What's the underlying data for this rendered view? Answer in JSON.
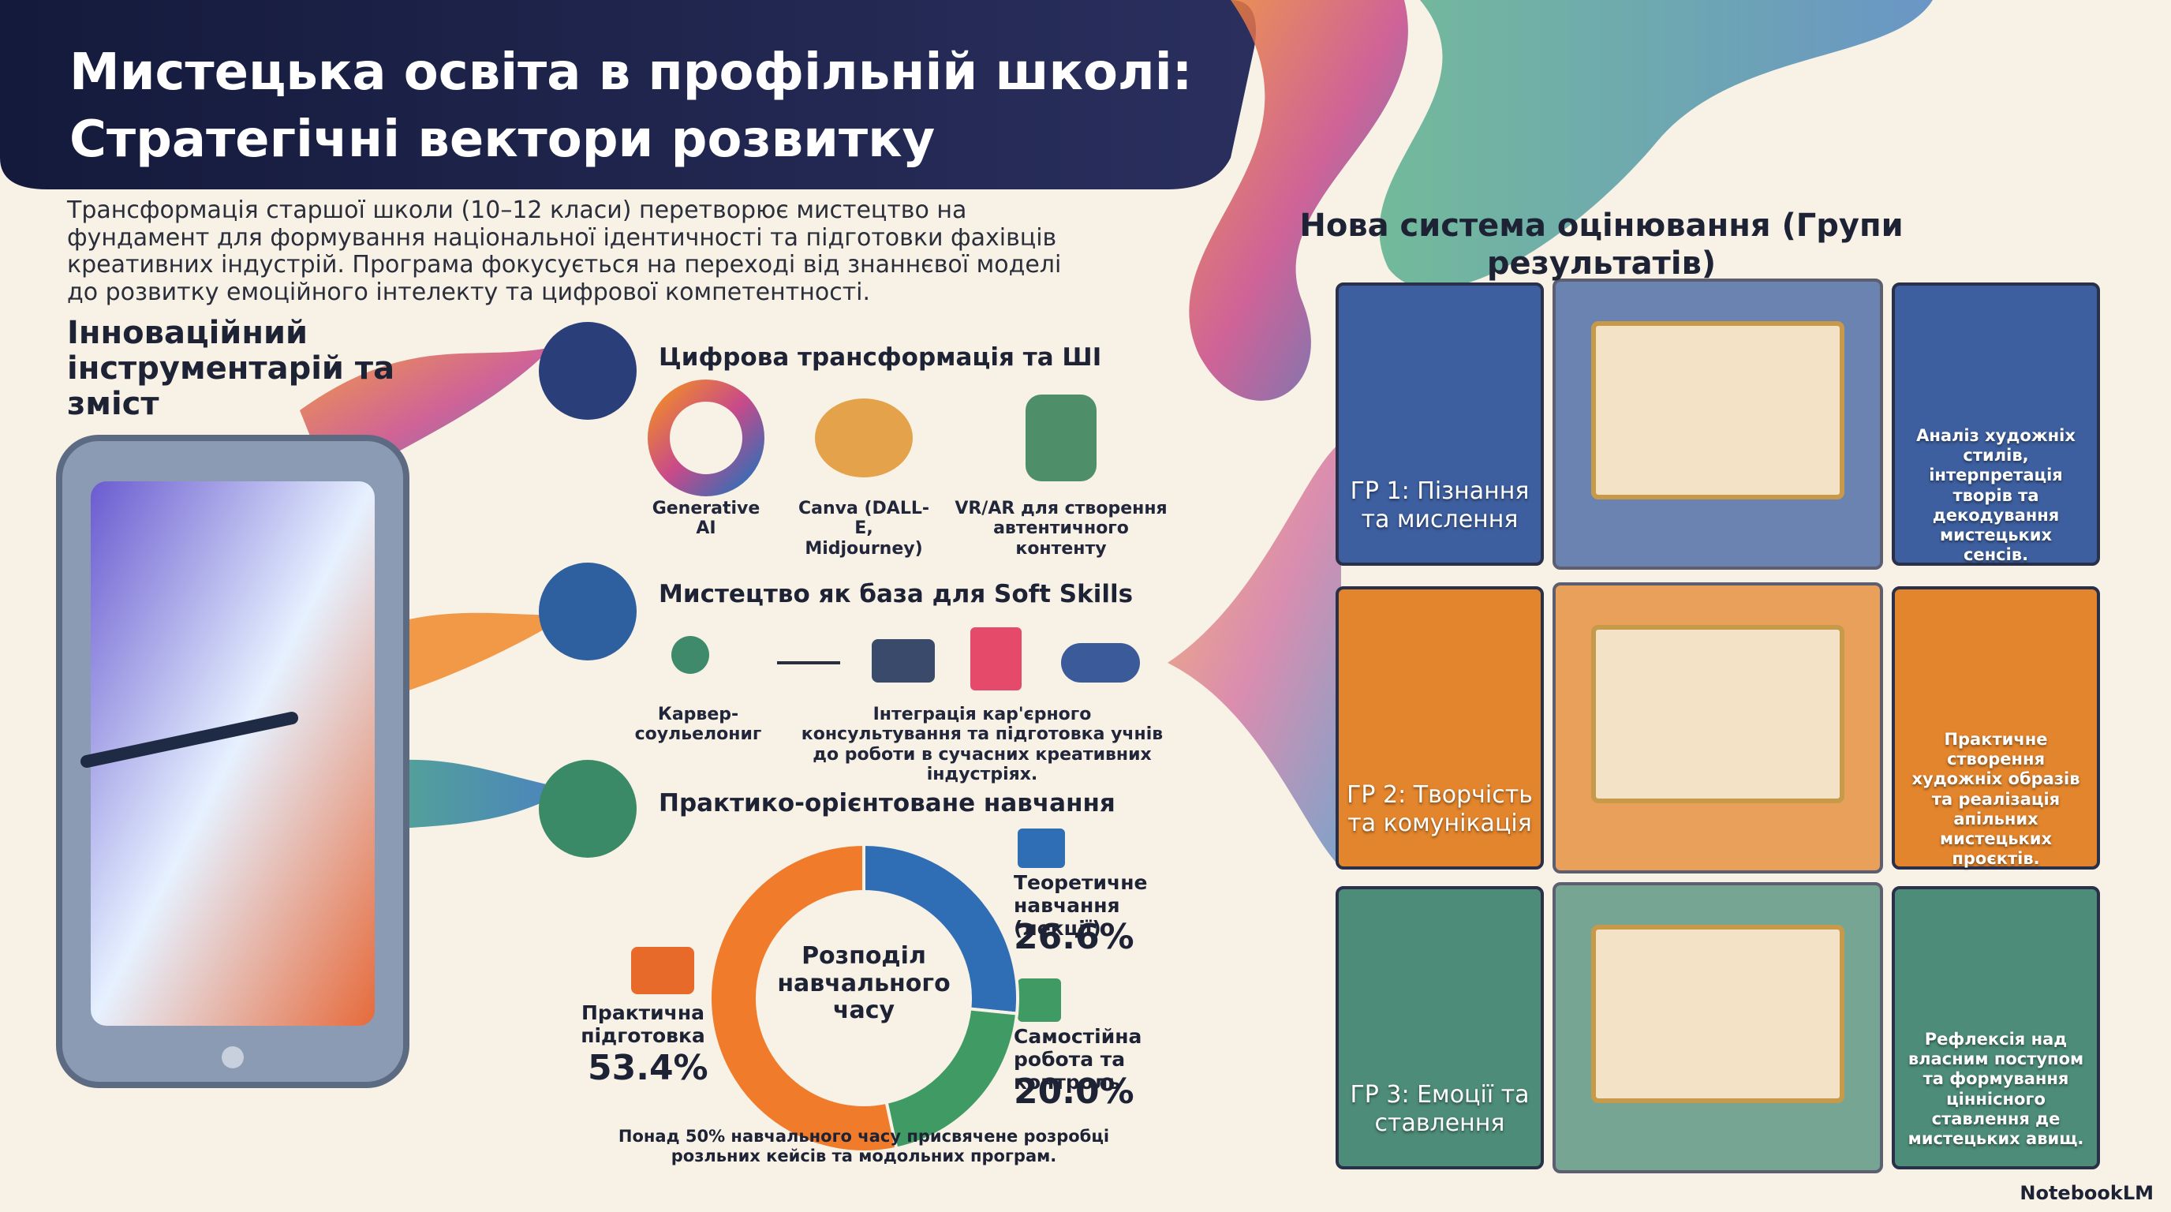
{
  "header": {
    "title_line1": "Мистецька освіта в профільній школі:",
    "title_line2": "Стратегічні вектори розвитку"
  },
  "intro": "Трансформація старшої школи (10–12 класи) перетворює мистецтво на фундамент для формування національної ідентичності та підготовки фахівців креативних індустрій. Програма фокусується на переході від знаннєвої моделі до розвитку емоційного інтелекту та цифрової компетентності.",
  "tools_heading": "Інноваційний інструментарій та зміст",
  "sections": [
    {
      "title": "Цифрова трансформація та ШІ",
      "items": [
        "Generative AI",
        "Canva (DALL-E, Midjourney)",
        "VR/AR для створення автентичного контенту"
      ]
    },
    {
      "title": "Мистецтво як база для Soft Skills",
      "items": [
        "Карвер-соульелониг",
        "Інтеграція кар'єрного консультування та підготовка учнів до роботи в сучасних креативних індустріях."
      ]
    },
    {
      "title": "Практико-орієнтоване навчання",
      "items": []
    }
  ],
  "time_split": {
    "center_label": "Розподіл навчального часу",
    "segments": [
      {
        "name": "Теоретичне навчання (лекції)",
        "value": 26.6,
        "value_label": "26.6%",
        "color": "#2f6db5"
      },
      {
        "name": "Самостійна робота та контроль",
        "value": 20.0,
        "value_label": "20.0%",
        "color": "#3f9a63"
      },
      {
        "name": "Практична підготовка",
        "value": 53.4,
        "value_label": "53.4%",
        "color": "#f07b2b"
      }
    ],
    "note": "Понад 50% навчального часу присвячене розробці розльних кейсів та модольних програм."
  },
  "assessment": {
    "title": "Нова система оцінювання (Групи результатів)",
    "groups": [
      {
        "name": "ГР 1: Пізнання та мислення",
        "description": "Аналіз художніх стилів, інтерпретація творів та декодування мистецьких сенсів.",
        "color": "#3d5f9f"
      },
      {
        "name": "ГР 2: Творчість та комунікація",
        "description": "Практичне створення художніх образів та реалізація апільних мистецьких проєктів.",
        "color": "#e3852c"
      },
      {
        "name": "ГР 3: Емоції та ставлення",
        "description": "Рефлексія над власним поступом та формування ціннісного ставлення де мистецьких авищ.",
        "color": "#4d8c78"
      }
    ]
  },
  "footer": {
    "brand": "NotebookLM"
  }
}
